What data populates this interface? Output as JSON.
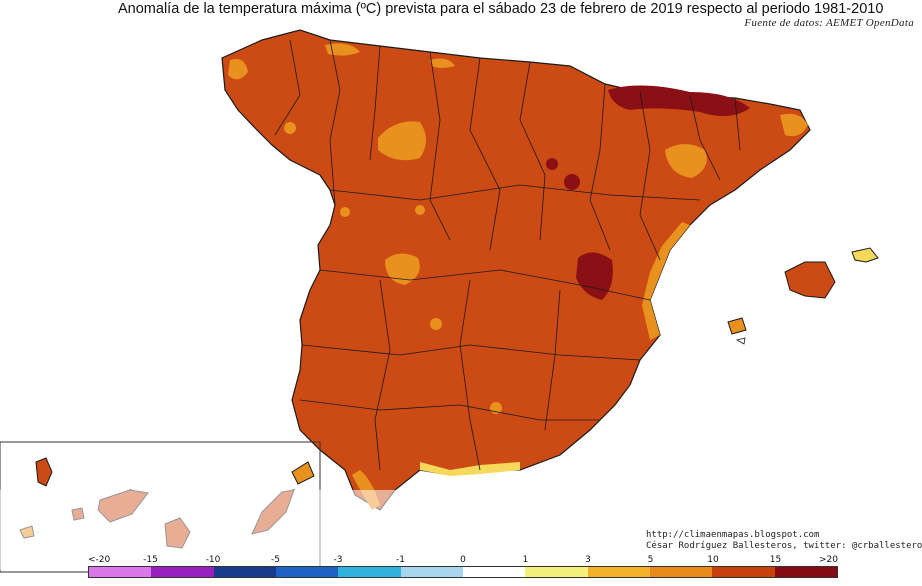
{
  "title": "Anomalía de la temperatura máxima (ºC) prevista para el sábado 23 de febrero de 2019 respecto al periodo 1981-2010",
  "source": "Fuente de datos: AEMET OpenData",
  "credits": {
    "url": "http://climaenmapas.blogspot.com",
    "author": "César Rodríguez Ballesteros, twitter: @crballesteros"
  },
  "legend": {
    "labels": [
      "<-20",
      "-15",
      "-10",
      "-5",
      "-3",
      "-1",
      "0",
      "1",
      "3",
      "5",
      "10",
      "15",
      ">20"
    ],
    "colors": [
      "#d977e9",
      "#9a1fc0",
      "#1a3a8c",
      "#1e62c8",
      "#2fb3dd",
      "#a9d4ee",
      "#ffffff",
      "#f2f07a",
      "#f3b02a",
      "#e98a1c",
      "#c8400c",
      "#840a14",
      "#5a0a08"
    ]
  },
  "map_colors": {
    "land_main": "#cc4a14",
    "land_light": "#e9911f",
    "land_pale": "#f6d85a",
    "land_dark": "#8a1016",
    "borders": "#1a1a1a"
  }
}
